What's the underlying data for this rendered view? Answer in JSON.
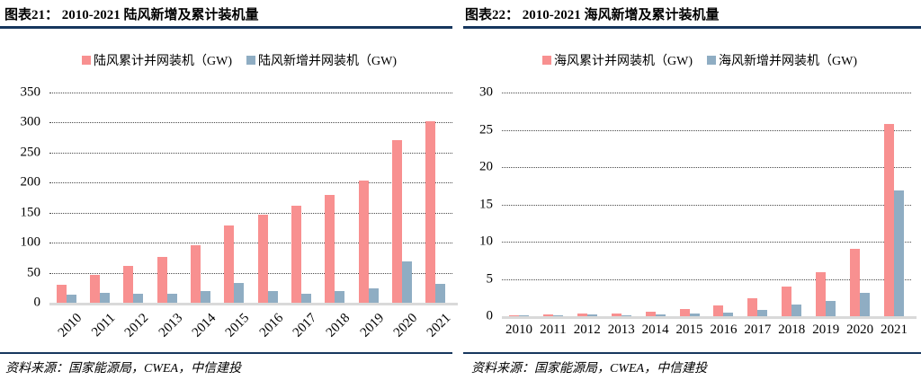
{
  "colors": {
    "accent_rule": "#17375E",
    "cumulative_bar": "#F89090",
    "new_bar": "#8FADC3",
    "gridline": "#4a4a4a",
    "baseline": "#D9D9D9"
  },
  "chart_data": [
    {
      "type": "bar",
      "title": "图表21： 2010-2021 陆风新增及累计装机量",
      "categories": [
        "2010",
        "2011",
        "2012",
        "2013",
        "2014",
        "2015",
        "2016",
        "2017",
        "2018",
        "2019",
        "2020",
        "2021"
      ],
      "series": [
        {
          "name": "陆风累计并网装机（GW)",
          "color": "#F89090",
          "values": [
            30,
            46,
            61,
            76,
            96,
            128,
            147,
            161,
            180,
            203,
            271,
            302
          ]
        },
        {
          "name": "陆风新增并网装机（GW)",
          "color": "#8FADC3",
          "values": [
            14,
            17,
            15,
            15,
            20,
            33,
            19,
            15,
            20,
            24,
            69,
            31
          ]
        }
      ],
      "ylim": [
        0,
        350
      ],
      "ytick_step": 50,
      "grid": true,
      "legend_position": "top",
      "x_label_rotation": -45,
      "source": "资料来源：国家能源局，CWEA，中信建投"
    },
    {
      "type": "bar",
      "title": "图表22： 2010-2021 海风新增及累计装机量",
      "categories": [
        "2010",
        "2011",
        "2012",
        "2013",
        "2014",
        "2015",
        "2016",
        "2017",
        "2018",
        "2019",
        "2020",
        "2021"
      ],
      "series": [
        {
          "name": "海风累计并网装机（GW)",
          "color": "#F89090",
          "values": [
            0.1,
            0.25,
            0.35,
            0.4,
            0.6,
            1.0,
            1.5,
            2.4,
            4.0,
            5.9,
            9.0,
            25.8
          ]
        },
        {
          "name": "海风新增并网装机（GW)",
          "color": "#8FADC3",
          "values": [
            0.05,
            0.1,
            0.2,
            0.1,
            0.25,
            0.4,
            0.5,
            0.9,
            1.6,
            2.0,
            3.1,
            16.9
          ]
        }
      ],
      "ylim": [
        0,
        30
      ],
      "ytick_step": 5,
      "grid": true,
      "legend_position": "top",
      "x_label_rotation": 0,
      "source": "资料来源：国家能源局，CWEA，中信建投"
    }
  ]
}
